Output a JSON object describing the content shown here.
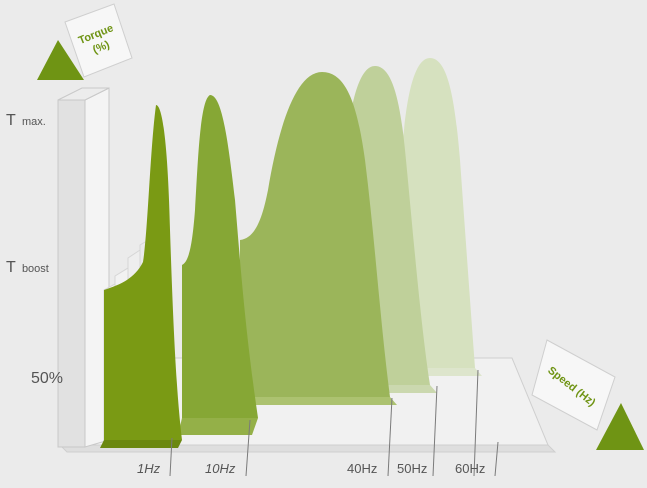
{
  "axes": {
    "torque_label": "Torque",
    "torque_unit": "(%)",
    "speed_label": "Speed (Hz)"
  },
  "y_labels": {
    "t_max_main": "T",
    "t_max_sub": "max.",
    "t_boost_main": "T",
    "t_boost_sub": "boost",
    "fifty": "50%"
  },
  "x_labels": [
    "1Hz",
    "10Hz",
    "40Hz",
    "50Hz",
    "60Hz"
  ],
  "colors": {
    "background": "#ebebeb",
    "dark_green": "#6f9414",
    "curve_1hz": "#7a9a14",
    "curve_10hz": "#86a735",
    "curve_40hz": "#9bb55a",
    "curve_50hz": "#bfd09a",
    "curve_60hz": "#d6e1bf"
  }
}
